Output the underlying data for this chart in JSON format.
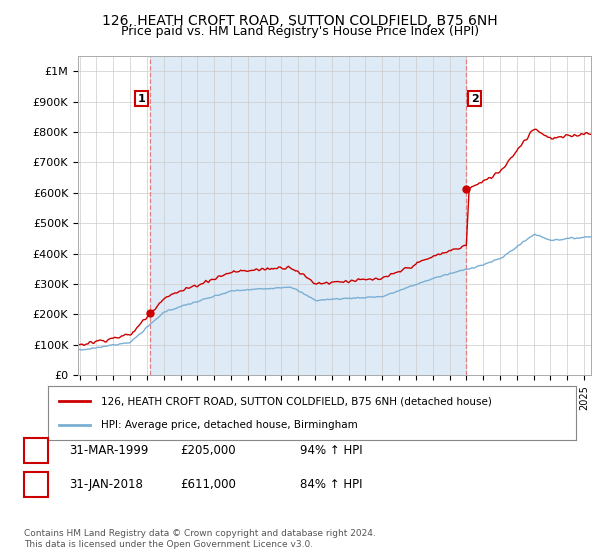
{
  "title": "126, HEATH CROFT ROAD, SUTTON COLDFIELD, B75 6NH",
  "subtitle": "Price paid vs. HM Land Registry's House Price Index (HPI)",
  "ylabel_ticks": [
    "£0",
    "£100K",
    "£200K",
    "£300K",
    "£400K",
    "£500K",
    "£600K",
    "£700K",
    "£800K",
    "£900K",
    "£1M"
  ],
  "ytick_values": [
    0,
    100000,
    200000,
    300000,
    400000,
    500000,
    600000,
    700000,
    800000,
    900000,
    1000000
  ],
  "ylim": [
    0,
    1050000
  ],
  "sale1_year": 1999,
  "sale1_month": 3,
  "sale1_price": 205000,
  "sale2_year": 2018,
  "sale2_month": 1,
  "sale2_price": 611000,
  "legend_property": "126, HEATH CROFT ROAD, SUTTON COLDFIELD, B75 6NH (detached house)",
  "legend_hpi": "HPI: Average price, detached house, Birmingham",
  "ann1_label": "1",
  "ann1_date": "31-MAR-1999",
  "ann1_price": "£205,000",
  "ann1_hpi": "94% ↑ HPI",
  "ann2_label": "2",
  "ann2_date": "31-JAN-2018",
  "ann2_price": "£611,000",
  "ann2_hpi": "84% ↑ HPI",
  "footer": "Contains HM Land Registry data © Crown copyright and database right 2024.\nThis data is licensed under the Open Government Licence v3.0.",
  "line_color_property": "#cc0000",
  "line_color_hpi": "#7bafd4",
  "dash_color": "#e08080",
  "shade_color": "#deeaf5",
  "bg_color": "#ffffff",
  "grid_color": "#cccccc",
  "title_fontsize": 10,
  "subtitle_fontsize": 9
}
